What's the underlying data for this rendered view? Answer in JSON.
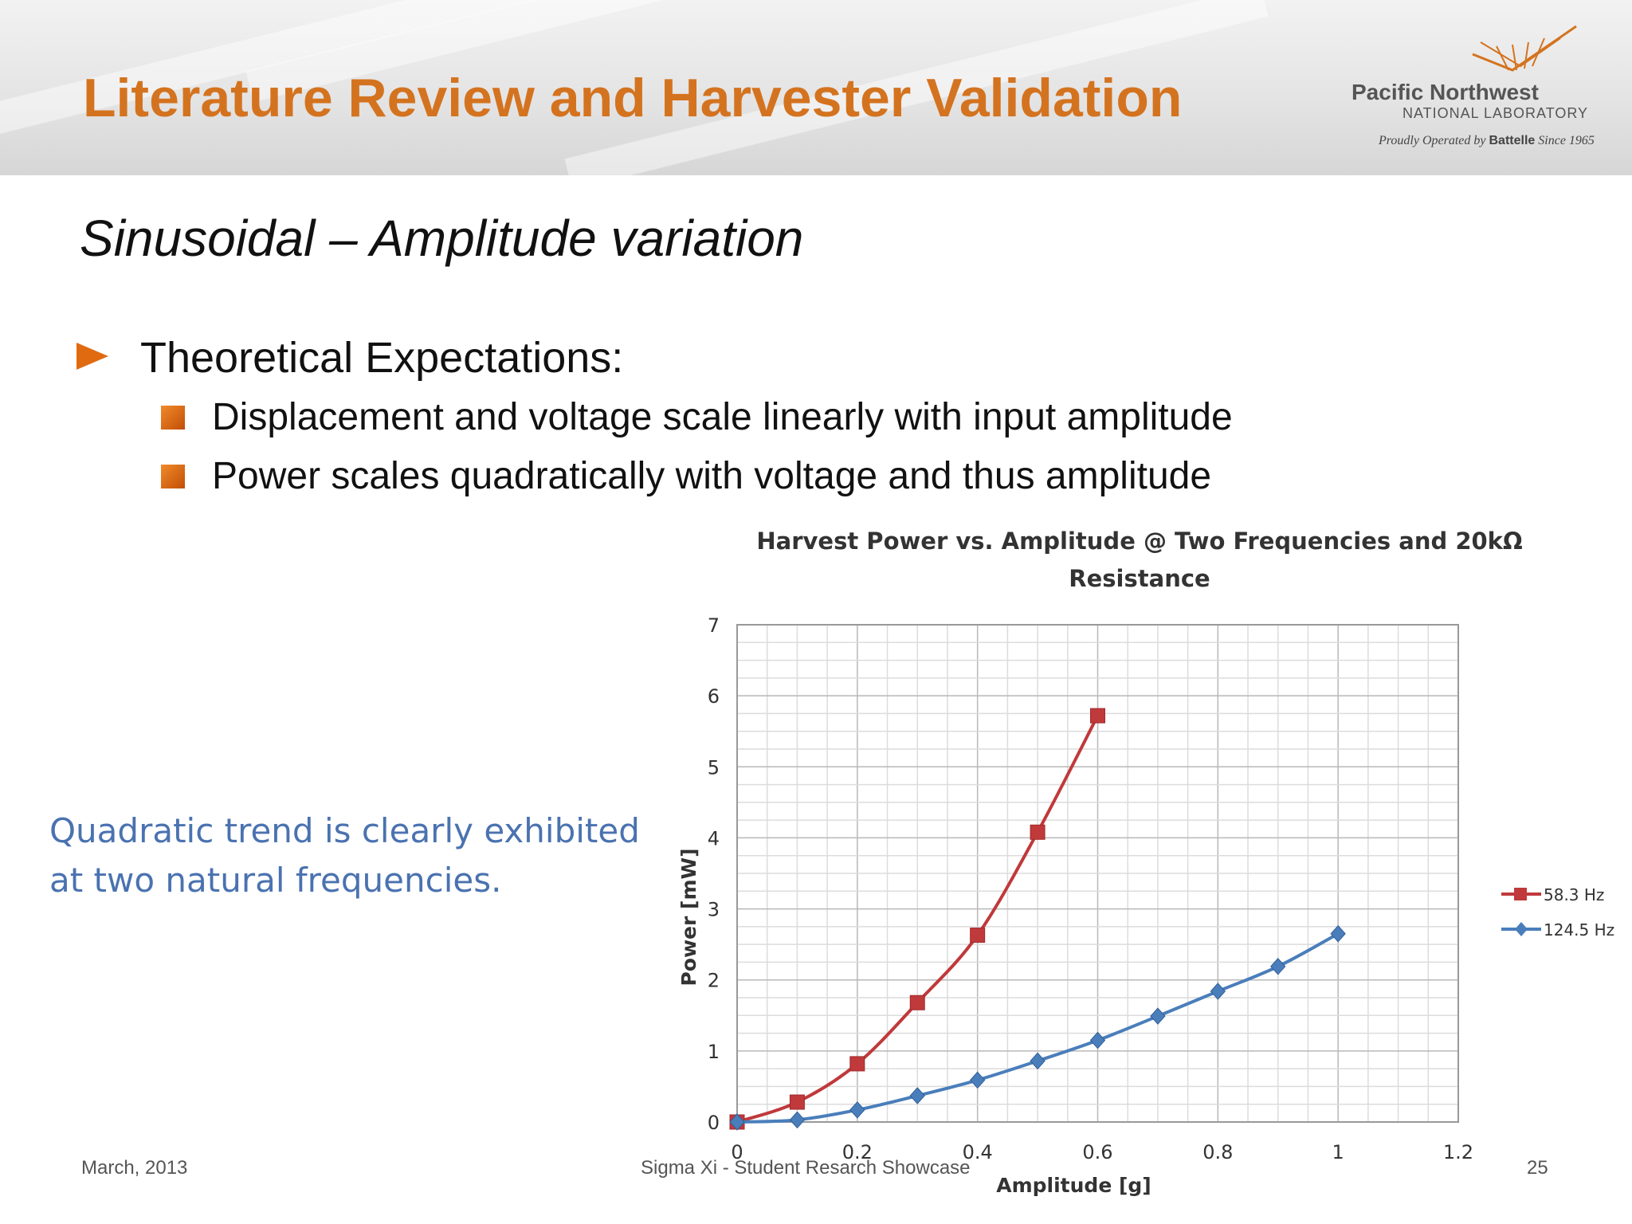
{
  "slide": {
    "title": "Literature Review and Harvester Validation",
    "subtitle": "Sinusoidal – Amplitude variation",
    "logo": {
      "name": "Pacific Northwest",
      "subname": "NATIONAL LABORATORY",
      "tagline_pre": "Proudly Operated by ",
      "tagline_brand": "Battelle",
      "tagline_post": " Since 1965"
    },
    "bullets": {
      "main": "Theoretical Expectations:",
      "sub": [
        "Displacement and voltage scale linearly with input amplitude",
        "Power scales quadratically with voltage and thus amplitude"
      ]
    },
    "note": "Quadratic trend is clearly exhibited at two natural frequencies.",
    "footer": {
      "date": "March, 2013",
      "event": "Sigma Xi - Student Resarch Showcase",
      "page": "25"
    },
    "colors": {
      "title": "#d4731f",
      "note": "#4a72b0",
      "bullet": "#e06a10"
    }
  },
  "chart_data": {
    "type": "line",
    "title": "Harvest Power vs. Amplitude @ Two Frequencies and 20kΩ Resistance",
    "xlabel": "Amplitude [g]",
    "ylabel": "Power [mW]",
    "xlim": [
      0,
      1.2
    ],
    "ylim": [
      0,
      7
    ],
    "xticks": [
      "0",
      "0.2",
      "0.4",
      "0.6",
      "0.8",
      "1",
      "1.2"
    ],
    "yticks": [
      "0",
      "1",
      "2",
      "3",
      "4",
      "5",
      "6",
      "7"
    ],
    "grid": true,
    "legend_position": "right",
    "series": [
      {
        "name": "58.3 Hz",
        "color": "#c0393b",
        "marker": "square",
        "x": [
          0,
          0.1,
          0.2,
          0.3,
          0.4,
          0.5,
          0.6
        ],
        "y": [
          0,
          0.28,
          0.82,
          1.68,
          2.63,
          4.08,
          5.72
        ]
      },
      {
        "name": "124.5 Hz",
        "color": "#4a7ebb",
        "marker": "diamond",
        "x": [
          0,
          0.1,
          0.2,
          0.3,
          0.4,
          0.5,
          0.6,
          0.7,
          0.8,
          0.9,
          1.0
        ],
        "y": [
          0,
          0.03,
          0.17,
          0.37,
          0.59,
          0.86,
          1.15,
          1.49,
          1.84,
          2.19,
          2.65
        ]
      }
    ]
  }
}
